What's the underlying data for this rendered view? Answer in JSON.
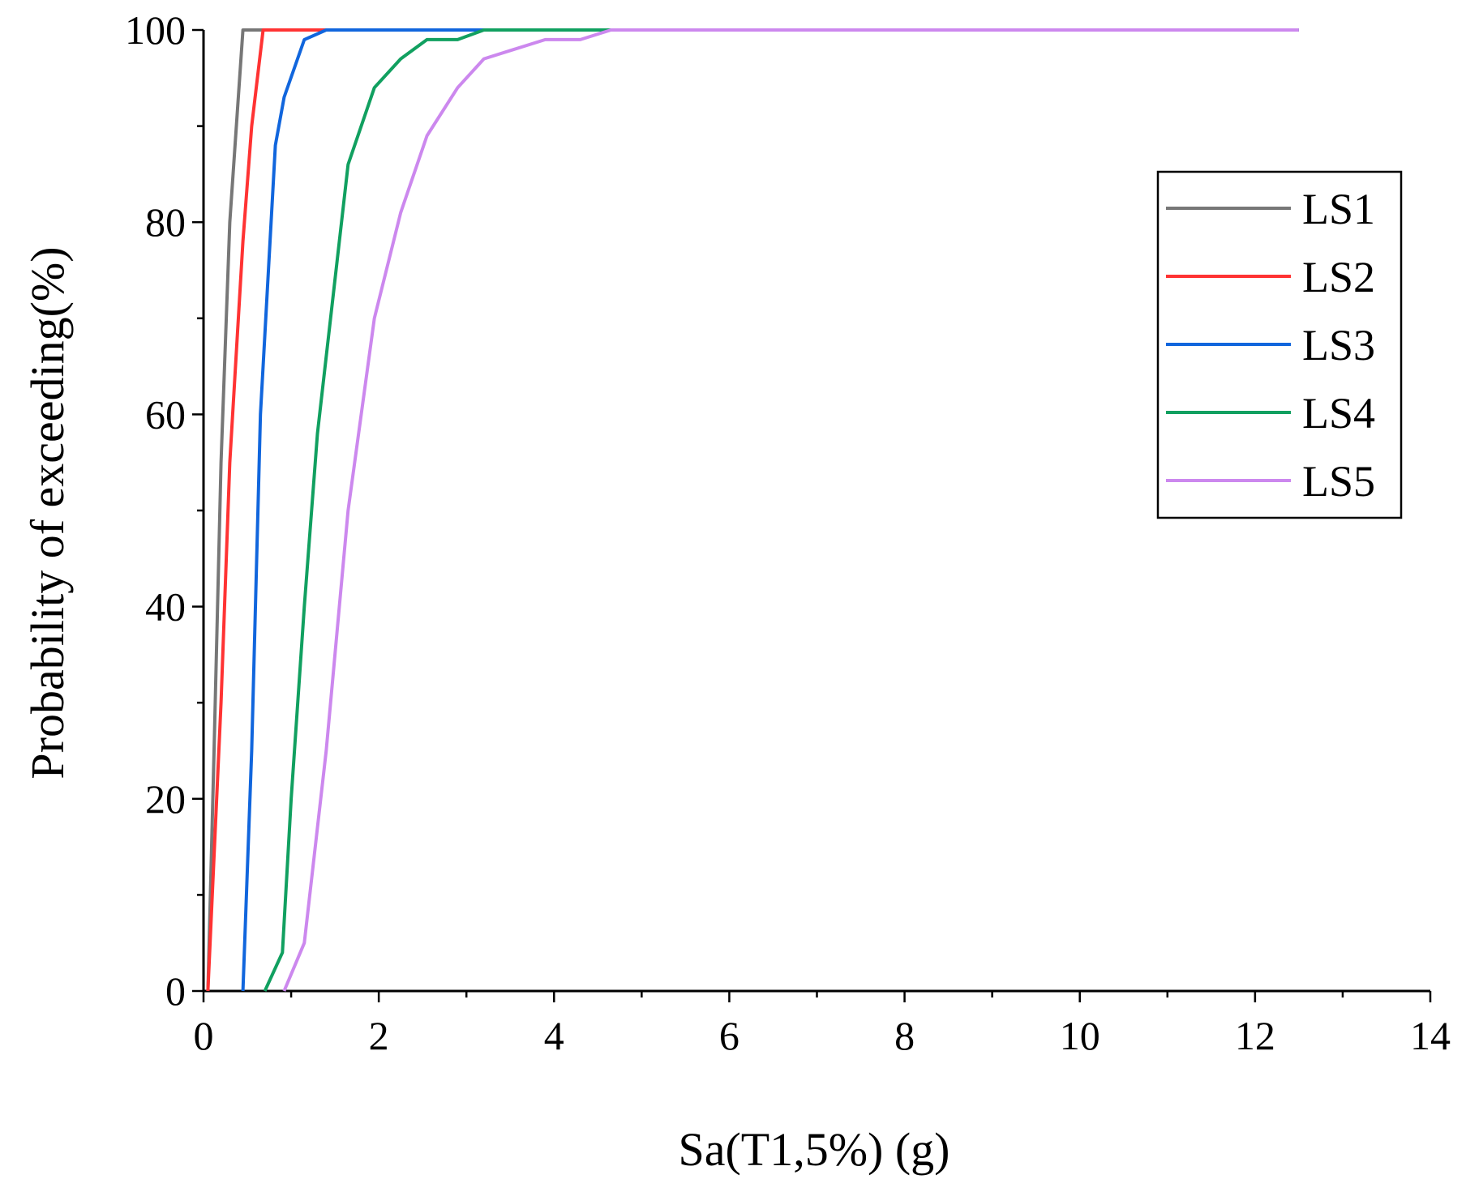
{
  "chart_data": {
    "type": "line",
    "title": "",
    "xlabel": "Sa(T1,5%) (g)",
    "ylabel": "Probability of exceeding(%)",
    "xlim": [
      0,
      14
    ],
    "ylim": [
      0,
      100
    ],
    "x_ticks": [
      0,
      2,
      4,
      6,
      8,
      10,
      12,
      14
    ],
    "y_ticks": [
      0,
      20,
      40,
      60,
      80,
      100
    ],
    "x_tick_labels": [
      "0",
      "2",
      "4",
      "6",
      "8",
      "10",
      "12",
      "14"
    ],
    "y_tick_labels": [
      "0",
      "20",
      "40",
      "60",
      "80",
      "100"
    ],
    "grid": false,
    "legend_position": "top-right",
    "series": [
      {
        "name": "LS1",
        "color": "#777777",
        "x": [
          0.05,
          0.12,
          0.2,
          0.3,
          0.45,
          12.5
        ],
        "y": [
          0,
          25,
          55,
          80,
          100,
          100
        ]
      },
      {
        "name": "LS2",
        "color": "#ff3333",
        "x": [
          0.05,
          0.2,
          0.3,
          0.45,
          0.55,
          0.68,
          12.5
        ],
        "y": [
          0,
          30,
          55,
          78,
          90,
          100,
          100
        ]
      },
      {
        "name": "LS3",
        "color": "#1166dd",
        "x": [
          0.45,
          0.55,
          0.65,
          0.82,
          0.92,
          1.15,
          1.4,
          12.5
        ],
        "y": [
          0,
          25,
          60,
          88,
          93,
          99,
          100,
          100
        ]
      },
      {
        "name": "LS4",
        "color": "#11a060",
        "x": [
          0.7,
          0.9,
          1.0,
          1.15,
          1.3,
          1.45,
          1.65,
          1.95,
          2.25,
          2.55,
          2.9,
          3.2,
          12.5
        ],
        "y": [
          0,
          4,
          20,
          40,
          58,
          70,
          86,
          94,
          97,
          99,
          99,
          100,
          100
        ]
      },
      {
        "name": "LS5",
        "color": "#cc88ee",
        "x": [
          0.92,
          1.15,
          1.4,
          1.65,
          1.95,
          2.25,
          2.55,
          2.9,
          3.2,
          3.55,
          3.9,
          4.3,
          4.65,
          12.5
        ],
        "y": [
          0,
          5,
          25,
          50,
          70,
          81,
          89,
          94,
          97,
          98,
          99,
          99,
          100,
          100
        ]
      }
    ]
  }
}
